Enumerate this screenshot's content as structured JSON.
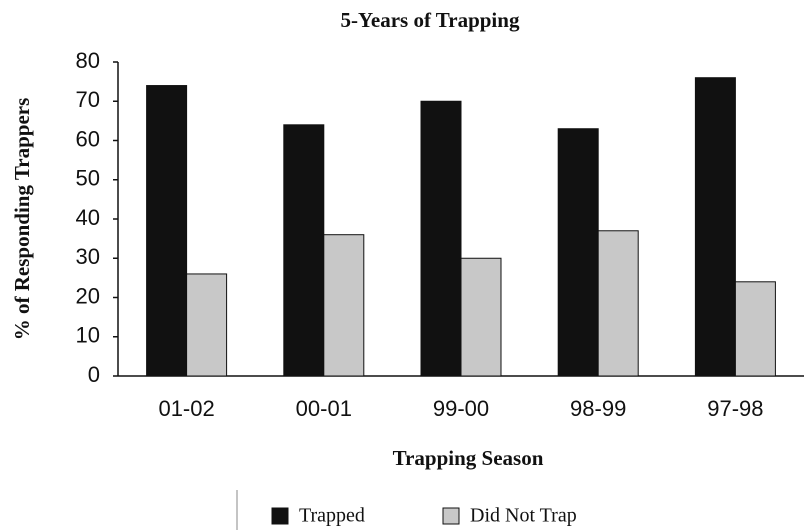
{
  "chart_data": {
    "type": "bar",
    "title": "5-Years of Trapping",
    "x_label": "Trapping Season",
    "y_label": "% of Responding Trappers",
    "categories": [
      "01-02",
      "00-01",
      "99-00",
      "98-99",
      "97-98"
    ],
    "series": [
      {
        "name": "Trapped",
        "color": "#111111",
        "values": [
          74,
          64,
          70,
          63,
          76
        ]
      },
      {
        "name": "Did Not Trap",
        "color": "#c8c8c8",
        "values": [
          26,
          36,
          30,
          37,
          24
        ]
      }
    ],
    "ylim": [
      0,
      80
    ],
    "yticks": [
      0,
      10,
      20,
      30,
      40,
      50,
      60,
      70,
      80
    ],
    "grid": false,
    "legend": "bottom"
  }
}
